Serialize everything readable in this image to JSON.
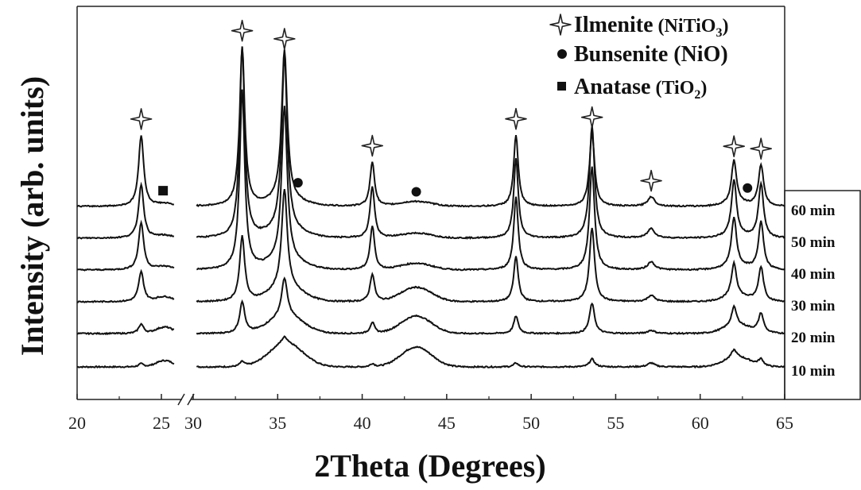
{
  "chart_data": {
    "type": "line",
    "xlabel": "2Theta (Degrees)",
    "ylabel": "Intensity (arb. units)",
    "x_break": [
      25.8,
      30
    ],
    "xlim": [
      20,
      65
    ],
    "x_ticks": [
      20,
      25,
      30,
      35,
      40,
      45,
      50,
      55,
      60,
      65
    ],
    "grid": false,
    "legend": {
      "position": "top-right",
      "entries": [
        {
          "symbol": "star",
          "label": "Ilmenite",
          "formula": "(NiTiO",
          "subscript": "3",
          "close": ")"
        },
        {
          "symbol": "circle",
          "label": "Bunsenite (NiO)"
        },
        {
          "symbol": "square",
          "label": "Anatase",
          "formula": "(TiO",
          "subscript": "2",
          "close": ")"
        }
      ]
    },
    "phase_markers": [
      {
        "phase": "Ilmenite",
        "symbol": "star",
        "x": 23.8
      },
      {
        "phase": "Ilmenite",
        "symbol": "star",
        "x": 32.9
      },
      {
        "phase": "Ilmenite",
        "symbol": "star",
        "x": 35.4
      },
      {
        "phase": "Ilmenite",
        "symbol": "star",
        "x": 40.6
      },
      {
        "phase": "Ilmenite",
        "symbol": "star",
        "x": 49.1
      },
      {
        "phase": "Ilmenite",
        "symbol": "star",
        "x": 53.6
      },
      {
        "phase": "Ilmenite",
        "symbol": "star",
        "x": 57.1
      },
      {
        "phase": "Ilmenite",
        "symbol": "star",
        "x": 62.0
      },
      {
        "phase": "Ilmenite",
        "symbol": "star",
        "x": 63.6
      },
      {
        "phase": "Bunsenite",
        "symbol": "circle",
        "x": 36.2
      },
      {
        "phase": "Bunsenite",
        "symbol": "circle",
        "x": 43.2
      },
      {
        "phase": "Bunsenite",
        "symbol": "circle",
        "x": 62.8
      },
      {
        "phase": "Anatase",
        "symbol": "square",
        "x": 25.1
      }
    ],
    "peak_positions": [
      23.8,
      32.9,
      35.4,
      40.6,
      49.1,
      53.6,
      57.1,
      62.0,
      63.6
    ],
    "broad_positions": [
      25.2,
      35.5,
      43.2,
      62.2
    ],
    "series": [
      {
        "name": "10 min",
        "offset": 0,
        "peak_heights": [
          4,
          6,
          8,
          4,
          5,
          10,
          5,
          10,
          8
        ],
        "broad_heights": [
          8,
          30,
          25,
          12
        ]
      },
      {
        "name": "20 min",
        "offset": 42,
        "peak_heights": [
          12,
          40,
          48,
          14,
          22,
          38,
          4,
          24,
          24
        ],
        "broad_heights": [
          8,
          22,
          22,
          10
        ]
      },
      {
        "name": "30 min",
        "offset": 82,
        "peak_heights": [
          38,
          82,
          125,
          35,
          57,
          93,
          8,
          43,
          43
        ],
        "broad_heights": [
          6,
          16,
          18,
          6
        ]
      },
      {
        "name": "40 min",
        "offset": 122,
        "peak_heights": [
          60,
          225,
          195,
          55,
          92,
          130,
          10,
          62,
          60
        ],
        "broad_heights": [
          4,
          10,
          8,
          4
        ]
      },
      {
        "name": "50 min",
        "offset": 162,
        "peak_heights": [
          68,
          240,
          220,
          65,
          100,
          142,
          12,
          70,
          68
        ],
        "broad_heights": [
          3,
          8,
          6,
          3
        ]
      },
      {
        "name": "60 min",
        "offset": 202,
        "peak_heights": [
          90,
          200,
          190,
          56,
          90,
          92,
          12,
          55,
          52
        ],
        "broad_heights": [
          3,
          6,
          6,
          3
        ]
      }
    ]
  }
}
